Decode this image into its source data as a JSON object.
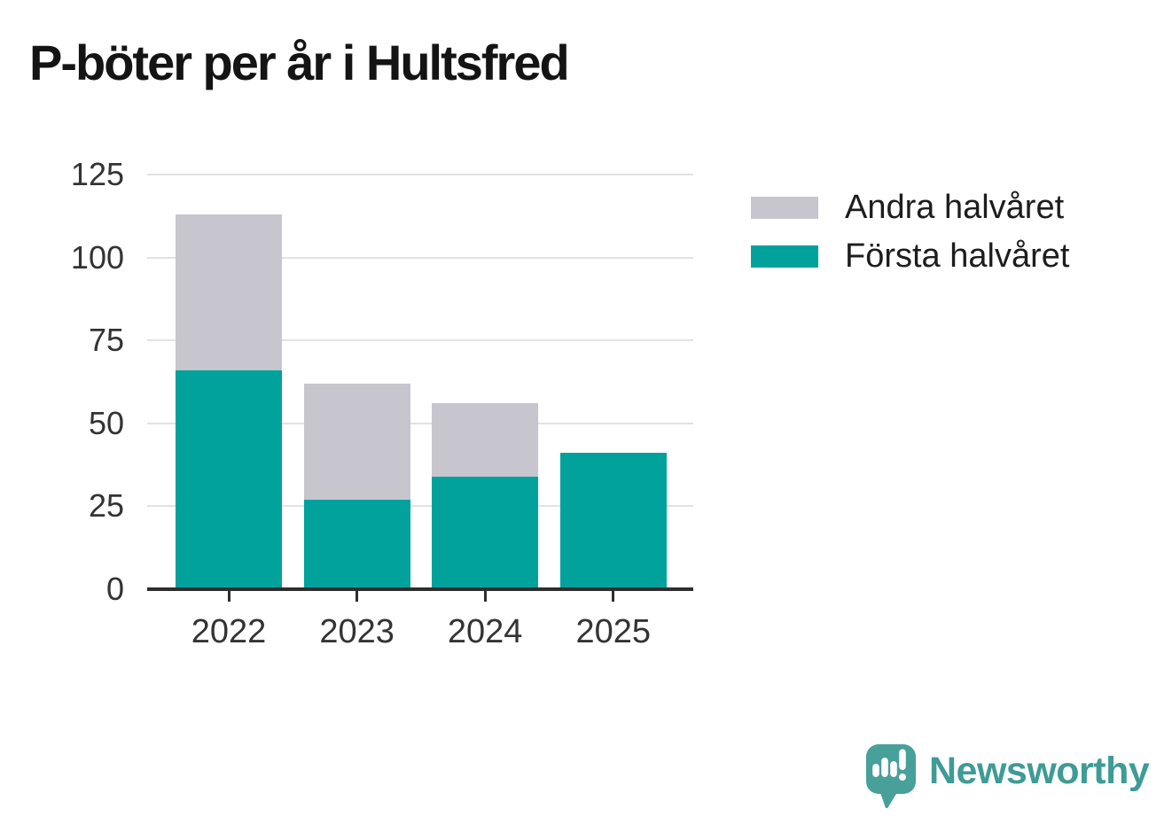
{
  "title": "P-böter per år i Hultsfred",
  "chart_data": {
    "type": "bar",
    "stacked": true,
    "title": "P-böter per år i Hultsfred",
    "categories": [
      "2022",
      "2023",
      "2024",
      "2025"
    ],
    "series": [
      {
        "name": "Första halvåret",
        "color": "#00a29b",
        "values": [
          66,
          27,
          34,
          41
        ]
      },
      {
        "name": "Andra halvåret",
        "color": "#c7c5ce",
        "values": [
          47,
          35,
          22,
          0
        ]
      }
    ],
    "totals": [
      113,
      62,
      56,
      41
    ],
    "xlabel": "",
    "ylabel": "",
    "ylim": [
      0,
      125
    ],
    "yticks": [
      0,
      25,
      50,
      75,
      100,
      125
    ],
    "grid": true,
    "legend_position": "top-right"
  },
  "legend": {
    "items": [
      {
        "label": "Andra halvåret",
        "color": "#c7c5ce"
      },
      {
        "label": "Första halvåret",
        "color": "#00a29b"
      }
    ]
  },
  "branding": {
    "name": "Newsworthy",
    "logo_icon": "speech-bubble-bar-chart-exclamation",
    "bubble_color": "#47a09a",
    "text_color": "#3e9b95"
  },
  "colors": {
    "background": "#ffffff",
    "title": "#141414",
    "axis": "#2e2e2e",
    "grid": "#e2e1e5",
    "tick_label": "#333333",
    "legend_label": "#1d1d1d"
  }
}
